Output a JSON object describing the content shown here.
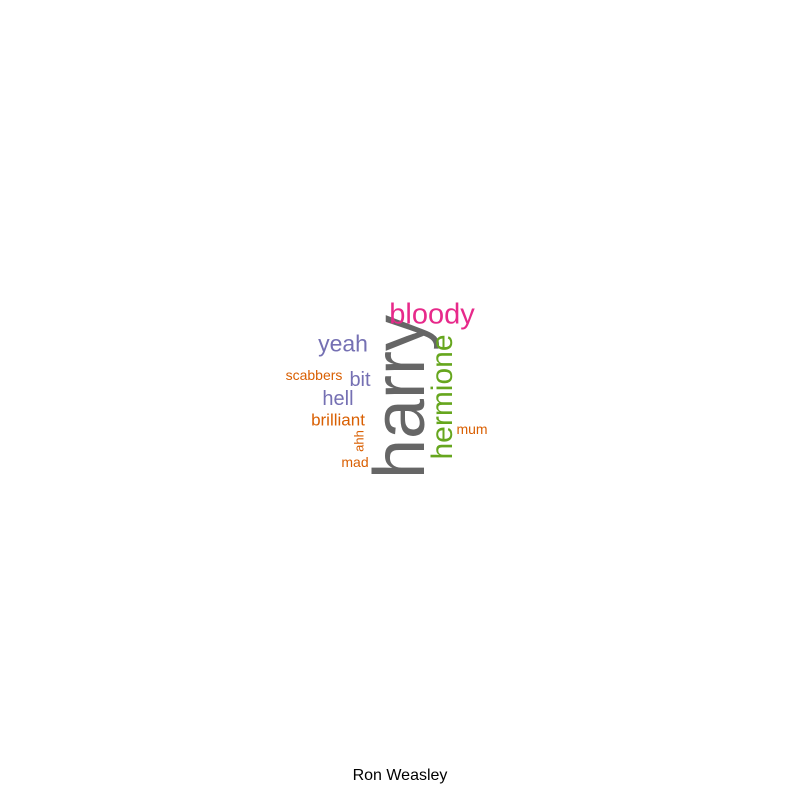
{
  "caption": "Ron Weasley",
  "colors": {
    "gray": "#666666",
    "magenta": "#E7298A",
    "green": "#66A61E",
    "purple": "#7570B3",
    "orange": "#D95F02"
  },
  "words": {
    "harry": {
      "text": "harry",
      "color": "#666666",
      "orientation": "vertical"
    },
    "bloody": {
      "text": "bloody",
      "color": "#E7298A",
      "orientation": "horizontal"
    },
    "hermione": {
      "text": "hermione",
      "color": "#66A61E",
      "orientation": "vertical"
    },
    "yeah": {
      "text": "yeah",
      "color": "#7570B3",
      "orientation": "horizontal"
    },
    "bit": {
      "text": "bit",
      "color": "#7570B3",
      "orientation": "horizontal"
    },
    "hell": {
      "text": "hell",
      "color": "#7570B3",
      "orientation": "horizontal"
    },
    "scabbers": {
      "text": "scabbers",
      "color": "#D95F02",
      "orientation": "horizontal"
    },
    "brilliant": {
      "text": "brilliant",
      "color": "#D95F02",
      "orientation": "horizontal"
    },
    "ahh": {
      "text": "ahh",
      "color": "#D95F02",
      "orientation": "vertical"
    },
    "mad": {
      "text": "mad",
      "color": "#D95F02",
      "orientation": "horizontal"
    },
    "mum": {
      "text": "mum",
      "color": "#D95F02",
      "orientation": "horizontal"
    }
  }
}
